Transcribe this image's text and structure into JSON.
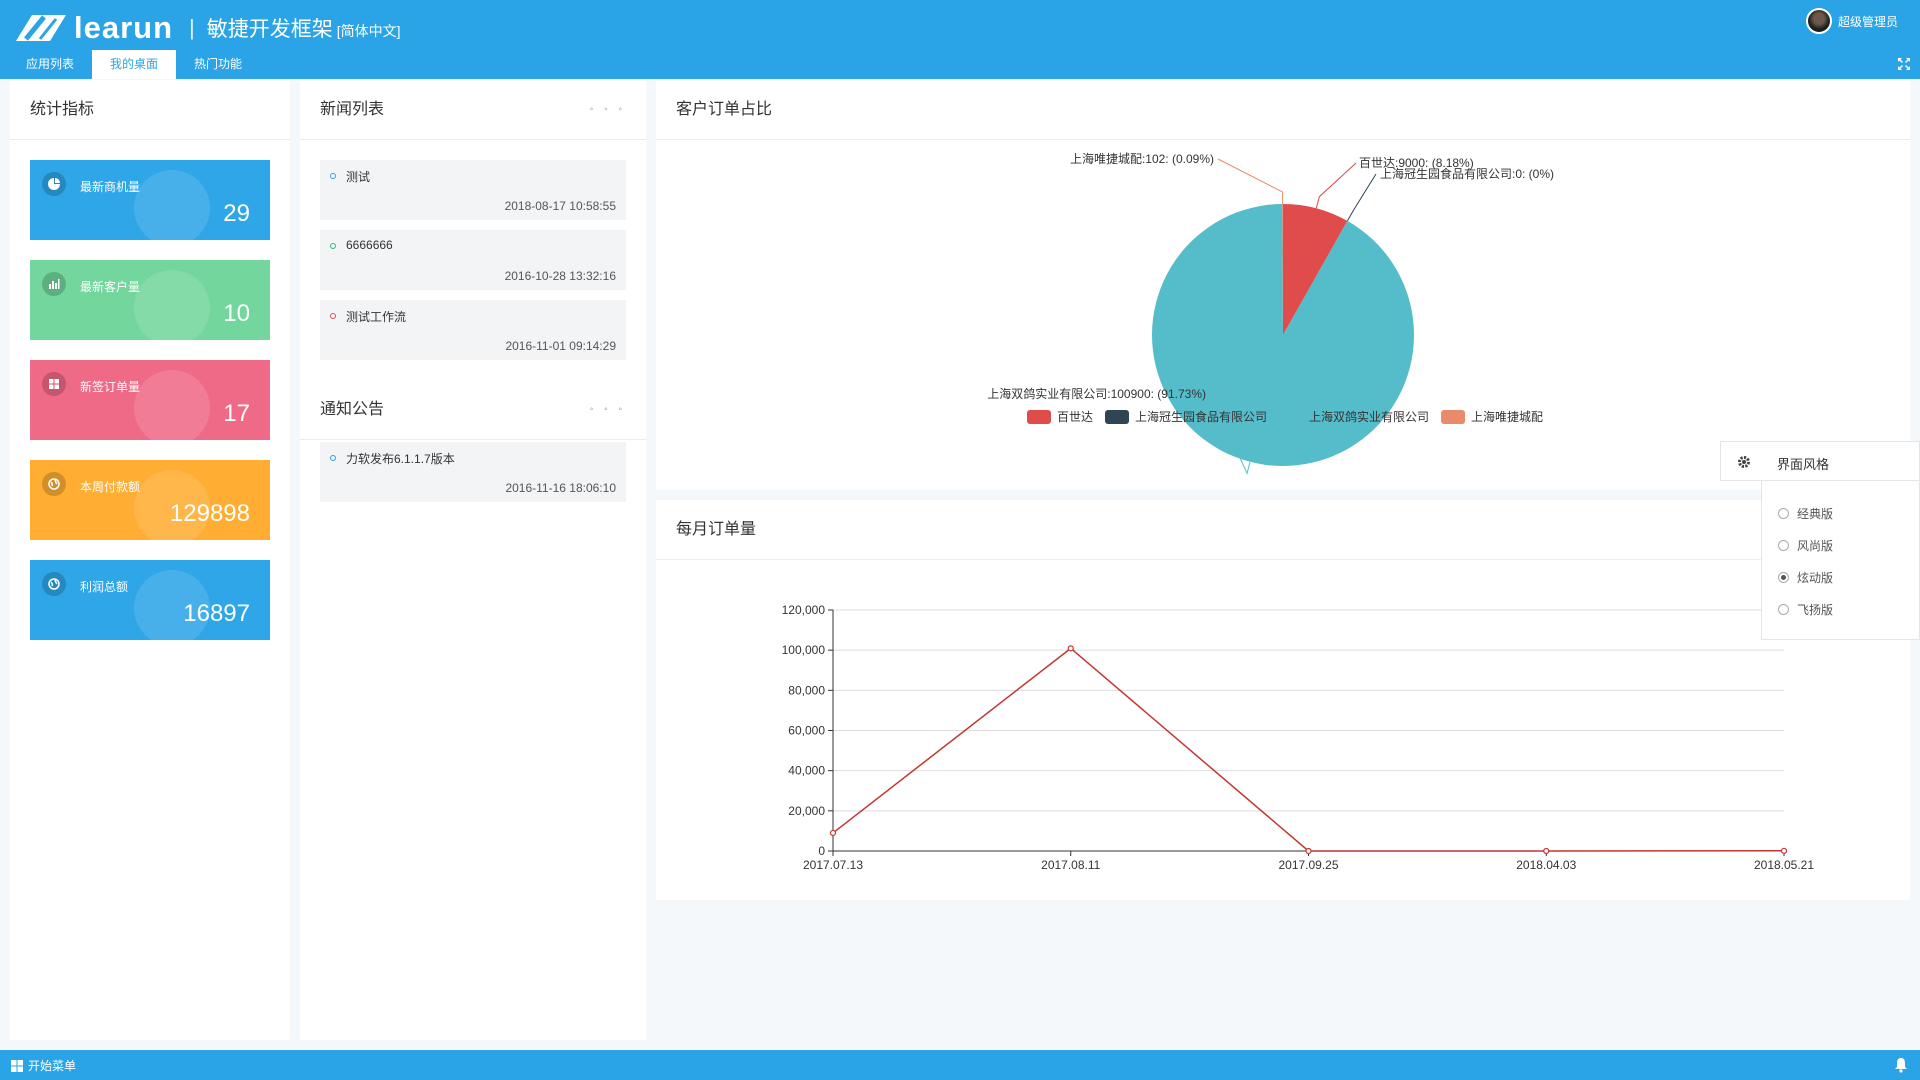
{
  "header": {
    "brand": "learun",
    "subtitle": "敏捷开发框架",
    "lang": "[简体中文]",
    "user": "超级管理员",
    "tabs": [
      {
        "label": "应用列表"
      },
      {
        "label": "我的桌面"
      },
      {
        "label": "热门功能"
      }
    ]
  },
  "stats": {
    "title": "统计指标",
    "cards": [
      {
        "label": "最新商机量",
        "value": "29",
        "color": "#2ea6e8"
      },
      {
        "label": "最新客户量",
        "value": "10",
        "color": "#73d69c"
      },
      {
        "label": "新签订单量",
        "value": "17",
        "color": "#ef6a87"
      },
      {
        "label": "本周付款额",
        "value": "129898",
        "color": "#ffae33"
      },
      {
        "label": "利润总额",
        "value": "16897",
        "color": "#2ea6e8"
      }
    ]
  },
  "news": {
    "title": "新闻列表",
    "more": "◦ ◦ ◦",
    "items": [
      {
        "title": "测试",
        "date": "2018-08-17 10:58:55",
        "dot": "#2aa4e6"
      },
      {
        "title": "6666666",
        "date": "2016-10-28 13:32:16",
        "dot": "#2db87a"
      },
      {
        "title": "测试工作流",
        "date": "2016-11-01 09:14:29",
        "dot": "#e04b4b"
      }
    ]
  },
  "notice": {
    "title": "通知公告",
    "more": "◦ ◦ ◦",
    "items": [
      {
        "title": "力软发布6.1.1.7版本",
        "date": "2016-11-16 18:06:10",
        "dot": "#2aa4e6"
      }
    ]
  },
  "pie_panel": {
    "title": "客户订单占比"
  },
  "line_panel": {
    "title": "每月订单量"
  },
  "chart_data": [
    {
      "type": "pie",
      "title": "",
      "slices": [
        {
          "name": "百世达",
          "value": 9000,
          "percent": "8.18%",
          "color": "#e04b4b",
          "label": "百世达:9000: (8.18%)"
        },
        {
          "name": "上海冠生园食品有限公司",
          "value": 0,
          "percent": "0%",
          "color": "#2f4554",
          "label": "上海冠生园食品有限公司:0: (0%)"
        },
        {
          "name": "上海双鸽实业有限公司",
          "value": 100900,
          "percent": "91.73%",
          "color": "#55bcc9",
          "label": "上海双鸽实业有限公司:100900: (91.73%)"
        },
        {
          "name": "上海唯捷城配",
          "value": 102,
          "percent": "0.09%",
          "color": "#e98a6b",
          "label": "上海唯捷城配:102: (0.09%)"
        }
      ],
      "legend": [
        "百世达",
        "上海冠生园食品有限公司",
        "上海双鸽实业有限公司",
        "上海唯捷城配"
      ],
      "legend_position": "bottom"
    },
    {
      "type": "line",
      "title": "",
      "x": [
        "2017.07.13",
        "2017.08.11",
        "2017.09.25",
        "2018.04.03",
        "2018.05.21"
      ],
      "series": [
        {
          "values": [
            9000,
            100900,
            0,
            0,
            102
          ],
          "color": "#c23531"
        }
      ],
      "ylim": [
        0,
        120000
      ],
      "yticks": [
        "0",
        "20,000",
        "40,000",
        "60,000",
        "80,000",
        "100,000",
        "120,000"
      ],
      "grid": true
    }
  ],
  "theme": {
    "title": "界面风格",
    "options": [
      {
        "label": "经典版",
        "selected": false
      },
      {
        "label": "风尚版",
        "selected": false
      },
      {
        "label": "炫动版",
        "selected": true
      },
      {
        "label": "飞扬版",
        "selected": false
      }
    ]
  },
  "footer": {
    "start": "开始菜单"
  }
}
